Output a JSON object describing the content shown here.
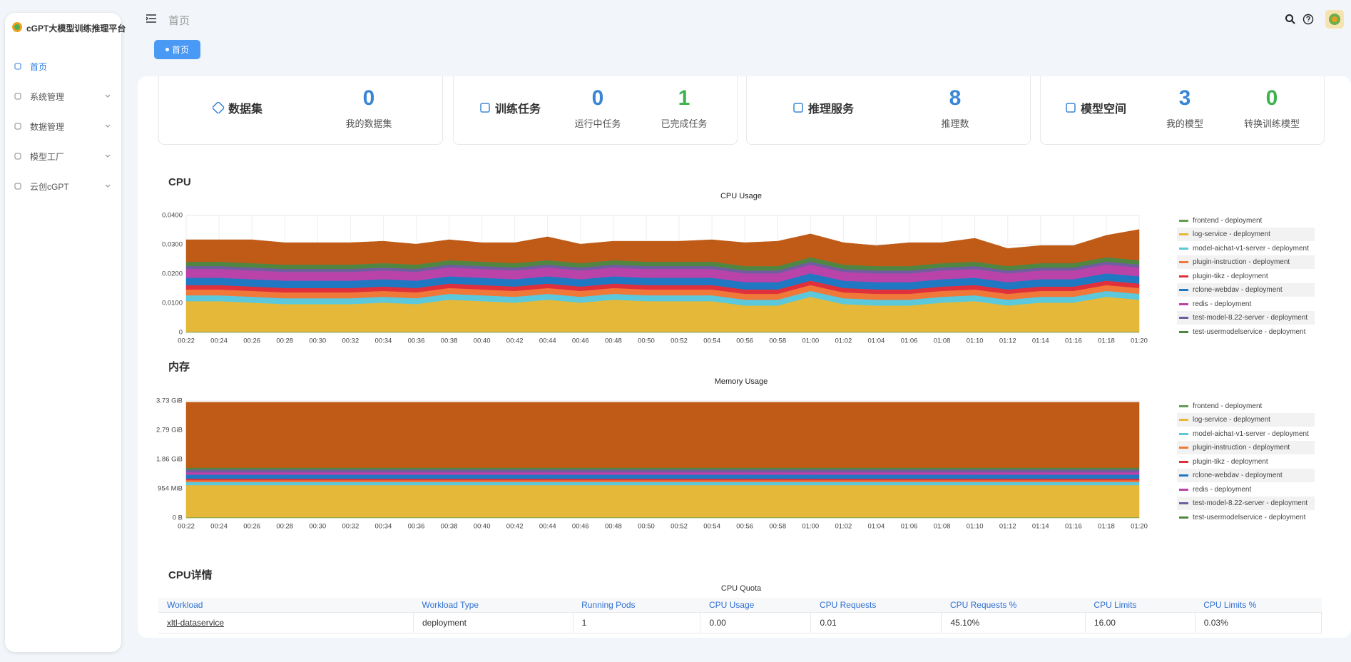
{
  "sidebar": {
    "logo": "cGPT大模型训练推理平台",
    "menu": [
      {
        "label": "首页",
        "active": true
      },
      {
        "label": "系统管理"
      },
      {
        "label": "数据管理"
      },
      {
        "label": "模型工厂"
      },
      {
        "label": "云创cGPT"
      }
    ]
  },
  "header": {
    "breadcrumb": "首页",
    "tab": "首页"
  },
  "stats": [
    {
      "title": "数据集",
      "items": [
        {
          "value": 0,
          "label": "我的数据集",
          "color": "#3a86d6"
        }
      ]
    },
    {
      "title": "训练任务",
      "items": [
        {
          "value": 0,
          "label": "运行中任务",
          "color": "#3a86d6"
        },
        {
          "value": 1,
          "label": "已完成任务",
          "color": "#3fb34f"
        }
      ]
    },
    {
      "title": "推理服务",
      "items": [
        {
          "value": 8,
          "label": "推理数",
          "color": "#3a86d6"
        }
      ]
    },
    {
      "title": "模型空间",
      "items": [
        {
          "value": 3,
          "label": "我的模型",
          "color": "#3a86d6"
        },
        {
          "value": 0,
          "label": "转换训练模型",
          "color": "#3fb34f"
        }
      ]
    }
  ],
  "chart_data": [
    {
      "type": "stacked-area",
      "heading": "CPU",
      "title": "CPU Usage",
      "grid": true,
      "categories": [
        "00:22",
        "00:24",
        "00:26",
        "00:28",
        "00:30",
        "00:32",
        "00:34",
        "00:36",
        "00:38",
        "00:40",
        "00:42",
        "00:44",
        "00:46",
        "00:48",
        "00:50",
        "00:52",
        "00:54",
        "00:56",
        "00:58",
        "01:00",
        "01:02",
        "01:04",
        "01:06",
        "01:08",
        "01:10",
        "01:12",
        "01:14",
        "01:16",
        "01:18",
        "01:20"
      ],
      "ylim": [
        0,
        0.04
      ],
      "yticks": [
        0,
        {
          "value": 0.01,
          "label": "0.0100"
        },
        {
          "value": 0.02,
          "label": "0.0200"
        },
        {
          "value": 0.03,
          "label": "0.0300"
        },
        {
          "value": 0.04,
          "label": "0.0400"
        }
      ],
      "series": [
        {
          "name": "frontend - deployment",
          "color": "#629e51",
          "values": [
            0.0002,
            0.0002,
            0.0002,
            0.0002,
            0.0002,
            0.0002,
            0.0002,
            0.0002,
            0.0002,
            0.0002,
            0.0002,
            0.0002,
            0.0002,
            0.0002,
            0.0002,
            0.0002,
            0.0002,
            0.0002,
            0.0002,
            0.0002,
            0.0002,
            0.0002,
            0.0002,
            0.0002,
            0.0002,
            0.0002,
            0.0002,
            0.0002,
            0.0002,
            0.0002
          ]
        },
        {
          "name": "log-service - deployment",
          "color": "#e5b839",
          "values": [
            0.0105,
            0.0105,
            0.01,
            0.0095,
            0.0095,
            0.0095,
            0.01,
            0.0095,
            0.011,
            0.0105,
            0.01,
            0.011,
            0.01,
            0.011,
            0.0105,
            0.0105,
            0.0105,
            0.009,
            0.009,
            0.012,
            0.0095,
            0.009,
            0.009,
            0.01,
            0.0105,
            0.009,
            0.01,
            0.01,
            0.012,
            0.011
          ]
        },
        {
          "name": "model-aichat-v1-server - deployment",
          "color": "#5bc8dc",
          "values": [
            0.002,
            0.002,
            0.002,
            0.002,
            0.002,
            0.002,
            0.002,
            0.002,
            0.002,
            0.002,
            0.002,
            0.002,
            0.002,
            0.002,
            0.002,
            0.002,
            0.002,
            0.002,
            0.002,
            0.002,
            0.002,
            0.002,
            0.002,
            0.002,
            0.002,
            0.002,
            0.002,
            0.002,
            0.002,
            0.002
          ]
        },
        {
          "name": "plugin-instruction - deployment",
          "color": "#f07838",
          "values": [
            0.002,
            0.002,
            0.002,
            0.002,
            0.002,
            0.002,
            0.002,
            0.002,
            0.002,
            0.002,
            0.002,
            0.002,
            0.002,
            0.002,
            0.002,
            0.002,
            0.002,
            0.002,
            0.002,
            0.002,
            0.002,
            0.002,
            0.002,
            0.002,
            0.002,
            0.002,
            0.002,
            0.002,
            0.002,
            0.002
          ]
        },
        {
          "name": "plugin-tikz - deployment",
          "color": "#e0303c",
          "values": [
            0.0015,
            0.0015,
            0.0015,
            0.0015,
            0.0015,
            0.0015,
            0.0015,
            0.0015,
            0.0015,
            0.0015,
            0.0015,
            0.0015,
            0.0015,
            0.0015,
            0.0015,
            0.0015,
            0.0015,
            0.0015,
            0.0015,
            0.0015,
            0.0015,
            0.0015,
            0.0015,
            0.0015,
            0.0015,
            0.0015,
            0.0015,
            0.0015,
            0.0015,
            0.0015
          ]
        },
        {
          "name": "rclone-webdav - deployment",
          "color": "#1f78c1",
          "values": [
            0.0025,
            0.0025,
            0.0025,
            0.0025,
            0.0025,
            0.0025,
            0.0025,
            0.0025,
            0.0025,
            0.0025,
            0.0025,
            0.0025,
            0.0025,
            0.0025,
            0.0025,
            0.0025,
            0.0025,
            0.0025,
            0.0025,
            0.0025,
            0.0025,
            0.0025,
            0.0025,
            0.0025,
            0.0025,
            0.0025,
            0.0025,
            0.0025,
            0.0025,
            0.0025
          ]
        },
        {
          "name": "redis - deployment",
          "color": "#ba43a9",
          "values": [
            0.003,
            0.003,
            0.003,
            0.003,
            0.003,
            0.003,
            0.003,
            0.003,
            0.003,
            0.003,
            0.003,
            0.003,
            0.003,
            0.003,
            0.003,
            0.003,
            0.003,
            0.003,
            0.003,
            0.003,
            0.003,
            0.003,
            0.003,
            0.003,
            0.003,
            0.003,
            0.003,
            0.003,
            0.003,
            0.003
          ]
        },
        {
          "name": "test-model-8.22-server - deployment",
          "color": "#705da0",
          "values": [
            0.001,
            0.001,
            0.001,
            0.001,
            0.001,
            0.001,
            0.001,
            0.001,
            0.001,
            0.001,
            0.001,
            0.001,
            0.001,
            0.001,
            0.001,
            0.001,
            0.001,
            0.001,
            0.001,
            0.001,
            0.001,
            0.001,
            0.001,
            0.001,
            0.001,
            0.001,
            0.001,
            0.001,
            0.001,
            0.001
          ]
        },
        {
          "name": "test-usermodelservice - deployment",
          "color": "#508642",
          "values": [
            0.0015,
            0.0015,
            0.0015,
            0.0015,
            0.0015,
            0.0015,
            0.0015,
            0.0015,
            0.0015,
            0.0015,
            0.0015,
            0.0015,
            0.0015,
            0.0015,
            0.0015,
            0.0015,
            0.0015,
            0.0015,
            0.0015,
            0.0015,
            0.0015,
            0.0015,
            0.0015,
            0.0015,
            0.0015,
            0.0015,
            0.0015,
            0.0015,
            0.0015,
            0.0015
          ]
        },
        {
          "color": "#bf5b17",
          "values": [
            0.0075,
            0.0075,
            0.008,
            0.0075,
            0.0075,
            0.0075,
            0.0075,
            0.007,
            0.007,
            0.0065,
            0.007,
            0.008,
            0.0065,
            0.0065,
            0.007,
            0.007,
            0.0075,
            0.008,
            0.0085,
            0.008,
            0.0075,
            0.007,
            0.008,
            0.007,
            0.008,
            0.006,
            0.006,
            0.006,
            0.0075,
            0.0105
          ]
        }
      ]
    },
    {
      "type": "stacked-area",
      "heading": "内存",
      "title": "Memory Usage",
      "grid": true,
      "categories": [
        "00:22",
        "00:24",
        "00:26",
        "00:28",
        "00:30",
        "00:32",
        "00:34",
        "00:36",
        "00:38",
        "00:40",
        "00:42",
        "00:44",
        "00:46",
        "00:48",
        "00:50",
        "00:52",
        "00:54",
        "00:56",
        "00:58",
        "01:00",
        "01:02",
        "01:04",
        "01:06",
        "01:08",
        "01:10",
        "01:12",
        "01:14",
        "01:16",
        "01:18",
        "01:20"
      ],
      "ylim": [
        0,
        3815
      ],
      "yticks": [
        {
          "value": 0,
          "label": "0 B"
        },
        {
          "value": 954,
          "label": "954 MiB"
        },
        {
          "value": 1907,
          "label": "1.86 GiB"
        },
        {
          "value": 2861,
          "label": "2.79 GiB"
        },
        {
          "value": 3815,
          "label": "3.73 GiB"
        }
      ],
      "series": [
        {
          "name": "frontend - deployment",
          "color": "#629e51",
          "values": [
            20,
            20,
            20,
            20,
            20,
            20,
            20,
            20,
            20,
            20,
            20,
            20,
            20,
            20,
            20,
            20,
            20,
            20,
            20,
            20,
            20,
            20,
            20,
            20,
            20,
            20,
            20,
            20,
            20,
            20
          ]
        },
        {
          "name": "log-service - deployment",
          "color": "#e5b839",
          "values": [
            1050,
            1050,
            1050,
            1050,
            1050,
            1050,
            1050,
            1050,
            1050,
            1050,
            1050,
            1050,
            1050,
            1050,
            1050,
            1050,
            1050,
            1050,
            1050,
            1050,
            1050,
            1050,
            1050,
            1050,
            1050,
            1050,
            1050,
            1050,
            1050,
            1050
          ]
        },
        {
          "name": "model-aichat-v1-server - deployment",
          "color": "#5bc8dc",
          "values": [
            100,
            100,
            100,
            100,
            100,
            100,
            100,
            100,
            100,
            100,
            100,
            100,
            100,
            100,
            100,
            100,
            100,
            100,
            100,
            100,
            100,
            100,
            100,
            100,
            100,
            100,
            100,
            100,
            100,
            100
          ]
        },
        {
          "name": "plugin-instruction - deployment",
          "color": "#f07838",
          "values": [
            60,
            60,
            60,
            60,
            60,
            60,
            60,
            60,
            60,
            60,
            60,
            60,
            60,
            60,
            60,
            60,
            60,
            60,
            60,
            60,
            60,
            60,
            60,
            60,
            60,
            60,
            60,
            60,
            60,
            60
          ]
        },
        {
          "name": "plugin-tikz - deployment",
          "color": "#e0303c",
          "values": [
            50,
            50,
            50,
            50,
            50,
            50,
            50,
            50,
            50,
            50,
            50,
            50,
            50,
            50,
            50,
            50,
            50,
            50,
            50,
            50,
            50,
            50,
            50,
            50,
            50,
            50,
            50,
            50,
            50,
            50
          ]
        },
        {
          "name": "rclone-webdav - deployment",
          "color": "#1f78c1",
          "values": [
            130,
            130,
            130,
            130,
            130,
            130,
            130,
            130,
            130,
            130,
            130,
            130,
            130,
            130,
            130,
            130,
            130,
            130,
            130,
            130,
            130,
            130,
            130,
            130,
            130,
            130,
            130,
            130,
            130,
            130
          ]
        },
        {
          "name": "redis - deployment",
          "color": "#ba43a9",
          "values": [
            80,
            80,
            80,
            80,
            80,
            80,
            80,
            80,
            80,
            80,
            80,
            80,
            80,
            80,
            80,
            80,
            80,
            80,
            80,
            80,
            80,
            80,
            80,
            80,
            80,
            80,
            80,
            80,
            80,
            80
          ]
        },
        {
          "name": "test-model-8.22-server - deployment",
          "color": "#705da0",
          "values": [
            90,
            90,
            90,
            90,
            90,
            90,
            90,
            90,
            90,
            90,
            90,
            90,
            90,
            90,
            90,
            90,
            90,
            90,
            90,
            90,
            90,
            90,
            90,
            90,
            90,
            90,
            90,
            90,
            90,
            90
          ]
        },
        {
          "name": "test-usermodelservice - deployment",
          "color": "#508642",
          "values": [
            60,
            60,
            60,
            60,
            60,
            60,
            60,
            60,
            60,
            60,
            60,
            60,
            60,
            60,
            60,
            60,
            60,
            60,
            60,
            60,
            60,
            60,
            60,
            60,
            60,
            60,
            60,
            60,
            60,
            60
          ]
        },
        {
          "color": "#bf5b17",
          "values": [
            2130,
            2130,
            2130,
            2130,
            2130,
            2130,
            2130,
            2130,
            2130,
            2130,
            2130,
            2130,
            2130,
            2130,
            2130,
            2130,
            2130,
            2130,
            2130,
            2130,
            2130,
            2130,
            2130,
            2130,
            2130,
            2130,
            2130,
            2130,
            2130,
            2130
          ]
        }
      ]
    }
  ],
  "table": {
    "heading": "CPU详情",
    "title": "CPU Quota",
    "columns": [
      "Workload",
      "Workload Type",
      "Running Pods",
      "CPU Usage",
      "CPU Requests",
      "CPU Requests %",
      "CPU Limits",
      "CPU Limits %"
    ],
    "rows": [
      [
        "xltl-dataservice",
        "deployment",
        "1",
        "0.00",
        "0.01",
        "45.10%",
        "16.00",
        "0.03%"
      ]
    ]
  }
}
